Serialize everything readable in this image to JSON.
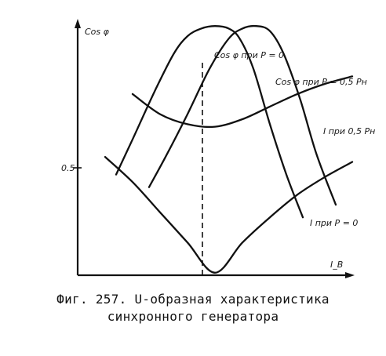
{
  "chart_data": {
    "type": "line",
    "title": "",
    "xlabel": "I_В",
    "ylabel": "Cos φ",
    "y_tick_labels": [
      "0.5"
    ],
    "ylim": [
      0,
      1
    ],
    "xlim": [
      0,
      1
    ],
    "grid": false,
    "series": [
      {
        "name": "Cos φ при P = 0",
        "x": [
          0.14,
          0.2,
          0.28,
          0.35,
          0.4,
          0.45,
          0.5,
          0.55,
          0.59,
          0.64,
          0.7,
          0.76,
          0.82
        ],
        "y": [
          0.4,
          0.54,
          0.73,
          0.88,
          0.95,
          0.98,
          0.99,
          0.98,
          0.94,
          0.82,
          0.6,
          0.4,
          0.23
        ]
      },
      {
        "name": "Cos φ при P = 0,5 Pн",
        "x": [
          0.26,
          0.32,
          0.4,
          0.48,
          0.55,
          0.6,
          0.65,
          0.7,
          0.75,
          0.81,
          0.87,
          0.94
        ],
        "y": [
          0.35,
          0.47,
          0.64,
          0.82,
          0.94,
          0.98,
          0.99,
          0.97,
          0.88,
          0.7,
          0.48,
          0.28
        ]
      },
      {
        "name": "I при 0,5 Pн",
        "x": [
          0.2,
          0.3,
          0.4,
          0.5,
          0.6,
          0.7,
          0.8,
          0.9,
          1.0
        ],
        "y": [
          0.72,
          0.64,
          0.6,
          0.59,
          0.62,
          0.67,
          0.72,
          0.76,
          0.79
        ]
      },
      {
        "name": "I при P = 0",
        "x": [
          0.1,
          0.2,
          0.3,
          0.4,
          0.5,
          0.6,
          0.7,
          0.8,
          0.9,
          1.0
        ],
        "y": [
          0.47,
          0.37,
          0.25,
          0.13,
          0.01,
          0.13,
          0.23,
          0.32,
          0.39,
          0.45
        ]
      }
    ],
    "annotations": [
      "Cos φ при P = 0",
      "Cos φ при P = 0,5 Pн",
      "I при 0,5 Pн",
      "I при P = 0"
    ]
  },
  "caption": {
    "line1": "Фиг. 257. U-образная характеристика",
    "line2": "синхронного генератора"
  }
}
